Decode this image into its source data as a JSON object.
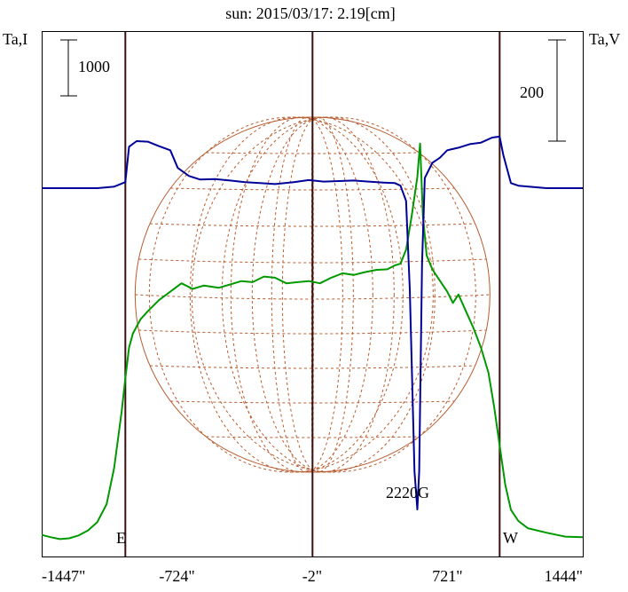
{
  "chart_data": {
    "type": "line",
    "title": "sun: 2015/03/17: 2.19[cm]",
    "left_axis_label": "Ta,I",
    "right_axis_label": "Ta,V",
    "left_scale_bar": {
      "label": "1000",
      "value": 1000
    },
    "right_scale_bar": {
      "label": "200",
      "value": 200
    },
    "x_unit": "arcsec",
    "x_ticks": [
      {
        "value": -1447,
        "label": "-1447\""
      },
      {
        "value": -724,
        "label": "-724\""
      },
      {
        "value": -2,
        "label": "-2\""
      },
      {
        "value": 721,
        "label": "721\""
      },
      {
        "value": 1444,
        "label": "1444\""
      }
    ],
    "xlim": [
      -1447,
      1444
    ],
    "limb_markers": [
      {
        "label": "E",
        "x": -1000
      },
      {
        "label": "W",
        "x": 1000
      }
    ],
    "annotations": [
      {
        "text": "2220G",
        "x": 575
      }
    ],
    "colors": {
      "title": "#000080",
      "intensity": "#009900",
      "polarization": "#000099",
      "grid_lines": "#3a1010",
      "sun_disk": "#b85c2e",
      "frame": "#000000"
    },
    "series": [
      {
        "type": "intensity",
        "values": [
          [
            -1447,
            100
          ],
          [
            -1400,
            60
          ],
          [
            -1350,
            25
          ],
          [
            -1300,
            40
          ],
          [
            -1250,
            90
          ],
          [
            -1200,
            180
          ],
          [
            -1150,
            330
          ],
          [
            -1100,
            650
          ],
          [
            -1060,
            1300
          ],
          [
            -1020,
            2300
          ],
          [
            -1000,
            2900
          ],
          [
            -980,
            3450
          ],
          [
            -960,
            3700
          ],
          [
            -920,
            3950
          ],
          [
            -880,
            4100
          ],
          [
            -820,
            4300
          ],
          [
            -760,
            4450
          ],
          [
            -700,
            4600
          ],
          [
            -640,
            4500
          ],
          [
            -580,
            4560
          ],
          [
            -500,
            4520
          ],
          [
            -440,
            4580
          ],
          [
            -380,
            4640
          ],
          [
            -320,
            4620
          ],
          [
            -260,
            4720
          ],
          [
            -200,
            4700
          ],
          [
            -140,
            4600
          ],
          [
            -80,
            4620
          ],
          [
            -20,
            4640
          ],
          [
            40,
            4600
          ],
          [
            100,
            4700
          ],
          [
            160,
            4780
          ],
          [
            220,
            4750
          ],
          [
            280,
            4800
          ],
          [
            340,
            4840
          ],
          [
            400,
            4850
          ],
          [
            440,
            4920
          ],
          [
            470,
            4950
          ],
          [
            500,
            5200
          ],
          [
            530,
            5800
          ],
          [
            560,
            6500
          ],
          [
            575,
            7100
          ],
          [
            590,
            5800
          ],
          [
            610,
            5100
          ],
          [
            640,
            4850
          ],
          [
            680,
            4650
          ],
          [
            720,
            4450
          ],
          [
            750,
            4250
          ],
          [
            780,
            4400
          ],
          [
            820,
            4100
          ],
          [
            860,
            3800
          ],
          [
            900,
            3450
          ],
          [
            940,
            3000
          ],
          [
            970,
            2400
          ],
          [
            1000,
            1700
          ],
          [
            1030,
            1000
          ],
          [
            1060,
            550
          ],
          [
            1100,
            350
          ],
          [
            1150,
            220
          ],
          [
            1250,
            140
          ],
          [
            1350,
            70
          ],
          [
            1444,
            60
          ]
        ]
      },
      {
        "type": "polarization",
        "values": [
          [
            -1447,
            0
          ],
          [
            -1350,
            0
          ],
          [
            -1250,
            0
          ],
          [
            -1150,
            0
          ],
          [
            -1060,
            3
          ],
          [
            -1000,
            12
          ],
          [
            -980,
            82
          ],
          [
            -940,
            93
          ],
          [
            -880,
            92
          ],
          [
            -820,
            83
          ],
          [
            -760,
            75
          ],
          [
            -720,
            40
          ],
          [
            -660,
            24
          ],
          [
            -600,
            17
          ],
          [
            -520,
            18
          ],
          [
            -440,
            15
          ],
          [
            -360,
            12
          ],
          [
            -280,
            10
          ],
          [
            -200,
            8
          ],
          [
            -100,
            12
          ],
          [
            -20,
            16
          ],
          [
            60,
            13
          ],
          [
            140,
            14
          ],
          [
            220,
            15
          ],
          [
            300,
            13
          ],
          [
            380,
            11
          ],
          [
            440,
            10
          ],
          [
            470,
            5
          ],
          [
            500,
            -25
          ],
          [
            520,
            -200
          ],
          [
            545,
            -560
          ],
          [
            560,
            -635
          ],
          [
            570,
            -560
          ],
          [
            585,
            -150
          ],
          [
            600,
            20
          ],
          [
            640,
            50
          ],
          [
            680,
            60
          ],
          [
            720,
            75
          ],
          [
            780,
            80
          ],
          [
            840,
            87
          ],
          [
            900,
            90
          ],
          [
            960,
            100
          ],
          [
            1000,
            102
          ],
          [
            1020,
            65
          ],
          [
            1060,
            10
          ],
          [
            1100,
            5
          ],
          [
            1250,
            0
          ],
          [
            1350,
            0
          ],
          [
            1444,
            0
          ]
        ]
      }
    ]
  }
}
